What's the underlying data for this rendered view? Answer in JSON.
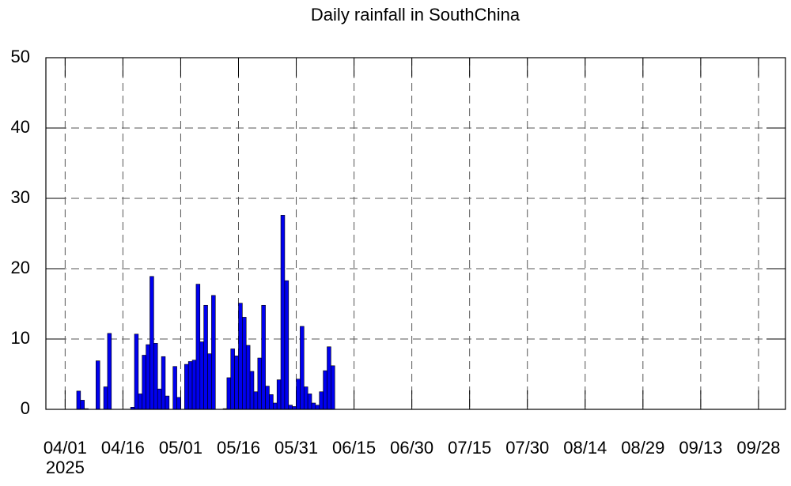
{
  "chart_data": {
    "type": "bar",
    "title": "Daily rainfall in SouthChina",
    "x": [
      "2025-04-01",
      "2025-04-02",
      "2025-04-03",
      "2025-04-04",
      "2025-04-05",
      "2025-04-06",
      "2025-04-07",
      "2025-04-08",
      "2025-04-09",
      "2025-04-10",
      "2025-04-11",
      "2025-04-12",
      "2025-04-13",
      "2025-04-14",
      "2025-04-15",
      "2025-04-16",
      "2025-04-17",
      "2025-04-18",
      "2025-04-19",
      "2025-04-20",
      "2025-04-21",
      "2025-04-22",
      "2025-04-23",
      "2025-04-24",
      "2025-04-25",
      "2025-04-26",
      "2025-04-27",
      "2025-04-28",
      "2025-04-29",
      "2025-04-30",
      "2025-05-01",
      "2025-05-02",
      "2025-05-03",
      "2025-05-04",
      "2025-05-05",
      "2025-05-06",
      "2025-05-07",
      "2025-05-08",
      "2025-05-09",
      "2025-05-10",
      "2025-05-11",
      "2025-05-12",
      "2025-05-13",
      "2025-05-14",
      "2025-05-15",
      "2025-05-16",
      "2025-05-17",
      "2025-05-18",
      "2025-05-19",
      "2025-05-20",
      "2025-05-21",
      "2025-05-22",
      "2025-05-23",
      "2025-05-24",
      "2025-05-25",
      "2025-05-26",
      "2025-05-27",
      "2025-05-28",
      "2025-05-29",
      "2025-05-30",
      "2025-05-31",
      "2025-06-01",
      "2025-06-02",
      "2025-06-03",
      "2025-06-04",
      "2025-06-05",
      "2025-06-06",
      "2025-06-07",
      "2025-06-08",
      "2025-06-09"
    ],
    "values": [
      0,
      0,
      0,
      2.6,
      1.3,
      0.1,
      0,
      0,
      6.9,
      0,
      3.2,
      10.8,
      0,
      0,
      0,
      0,
      0,
      0.3,
      10.7,
      2.2,
      7.7,
      9.2,
      18.9,
      9.4,
      2.9,
      7.5,
      1.9,
      0,
      6.1,
      1.7,
      0,
      6.4,
      6.8,
      7.0,
      17.8,
      9.6,
      14.8,
      7.9,
      16.2,
      0,
      0,
      0.1,
      4.5,
      8.6,
      7.6,
      15.1,
      13.1,
      9.1,
      5.4,
      2.5,
      7.3,
      14.8,
      3.3,
      2.1,
      0.9,
      4.2,
      27.6,
      18.3,
      0.6,
      0.4,
      4.3,
      11.8,
      3.2,
      2.2,
      0.9,
      0.6,
      2.5,
      5.5,
      8.9,
      6.2
    ],
    "color": "#0000ee",
    "xlim": [
      "2025-03-27",
      "2025-10-05"
    ],
    "xticks": [
      {
        "value": "2025-04-01",
        "label": "04/01"
      },
      {
        "value": "2025-04-16",
        "label": "04/16"
      },
      {
        "value": "2025-05-01",
        "label": "05/01"
      },
      {
        "value": "2025-05-16",
        "label": "05/16"
      },
      {
        "value": "2025-05-31",
        "label": "05/31"
      },
      {
        "value": "2025-06-15",
        "label": "06/15"
      },
      {
        "value": "2025-06-30",
        "label": "06/30"
      },
      {
        "value": "2025-07-15",
        "label": "07/15"
      },
      {
        "value": "2025-07-30",
        "label": "07/30"
      },
      {
        "value": "2025-08-14",
        "label": "08/14"
      },
      {
        "value": "2025-08-29",
        "label": "08/29"
      },
      {
        "value": "2025-09-13",
        "label": "09/13"
      },
      {
        "value": "2025-09-28",
        "label": "09/28"
      }
    ],
    "x_year_label": "2025",
    "ylim": [
      0,
      50
    ],
    "yticks": [
      0,
      10,
      20,
      30,
      40,
      50
    ],
    "grid": true
  }
}
